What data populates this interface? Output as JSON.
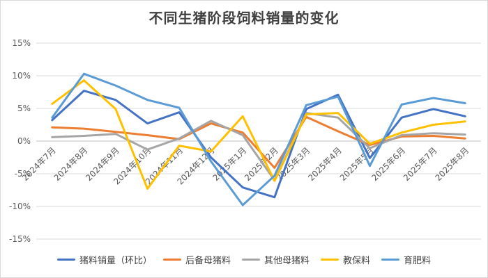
{
  "chart_data": {
    "type": "line",
    "title": "不同生猪阶段饲料销量的变化",
    "categories": [
      "2024年7月",
      "2024年8月",
      "2024年9月",
      "2024年10月",
      "2024年11月",
      "2024年12月",
      "2025年1月",
      "2025年2月",
      "2025年3月",
      "2025年4月",
      "2025年5月",
      "2025年6月",
      "2025年7月",
      "2025年8月"
    ],
    "ylim": [
      -15,
      15
    ],
    "yticks": [
      "15%",
      "10%",
      "5%",
      "0%",
      "-5%",
      "-10%",
      "-15%"
    ],
    "ytick_values": [
      15,
      10,
      5,
      0,
      -5,
      -10,
      -15
    ],
    "grid": true,
    "legend_position": "bottom",
    "series": [
      {
        "name": "猪料销量（环比）",
        "color": "#4472C4",
        "values": [
          3.2,
          7.7,
          6.3,
          2.7,
          4.4,
          -2.5,
          -7.1,
          -8.6,
          4.9,
          7.1,
          -2.6,
          3.6,
          4.9,
          3.8
        ]
      },
      {
        "name": "后备母猪料",
        "color": "#ED7D31",
        "values": [
          2.1,
          1.9,
          1.4,
          0.9,
          0.3,
          2.7,
          1.3,
          -4.1,
          3.7,
          1.5,
          -0.6,
          0.7,
          0.8,
          0.4
        ]
      },
      {
        "name": "其他母猪料",
        "color": "#A5A5A5",
        "values": [
          0.6,
          0.8,
          1.1,
          -1.3,
          0.4,
          3.1,
          0.9,
          -6.0,
          4.3,
          3.6,
          -1.1,
          0.9,
          1.2,
          1.0
        ]
      },
      {
        "name": "教保料",
        "color": "#FFC000",
        "values": [
          5.7,
          9.3,
          4.9,
          -7.3,
          -0.7,
          -1.6,
          3.8,
          -6.1,
          4.1,
          4.3,
          -0.4,
          1.3,
          2.5,
          3.0
        ]
      },
      {
        "name": "育肥料",
        "color": "#5B9BD5",
        "values": [
          3.6,
          10.3,
          8.5,
          6.3,
          5.1,
          -3.1,
          -9.8,
          -5.3,
          5.5,
          6.8,
          -3.8,
          5.6,
          6.6,
          5.8
        ]
      }
    ]
  }
}
